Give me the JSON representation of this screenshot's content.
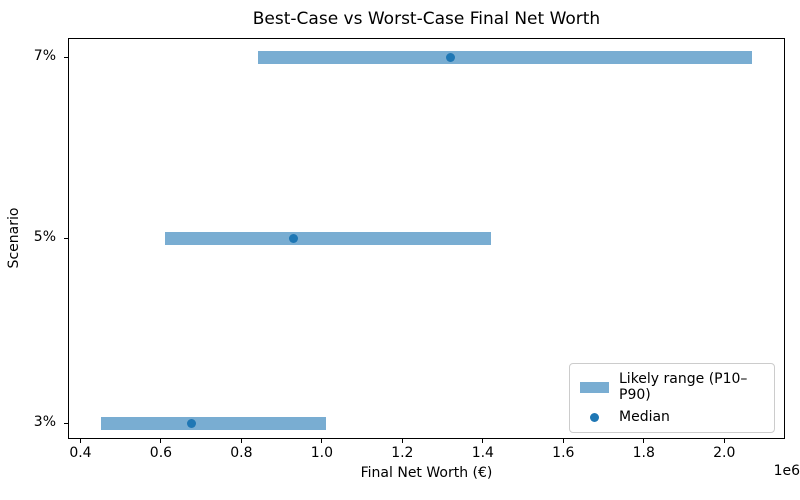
{
  "chart_data": {
    "type": "bar",
    "subtype": "horizontal-range-bar-with-median",
    "title": "Best-Case vs Worst-Case Final Net Worth",
    "xlabel": "Final Net Worth (€)",
    "ylabel": "Scenario",
    "x_offset_label": "1e6",
    "xlim": [
      369000,
      2151000
    ],
    "x_ticks": [
      400000,
      600000,
      800000,
      1000000,
      1200000,
      1400000,
      1600000,
      1800000,
      2000000
    ],
    "x_tick_labels": [
      "0.4",
      "0.6",
      "0.8",
      "1.0",
      "1.2",
      "1.4",
      "1.6",
      "1.8",
      "2.0"
    ],
    "grid": false,
    "categories_top_to_bottom": [
      "7%",
      "5%",
      "3%"
    ],
    "rows": [
      {
        "scenario": "7%",
        "p10": 840000,
        "median": 1320000,
        "p90": 2070000
      },
      {
        "scenario": "5%",
        "p10": 610000,
        "median": 930000,
        "p90": 1420000
      },
      {
        "scenario": "3%",
        "p10": 450000,
        "median": 675000,
        "p90": 1010000
      }
    ],
    "legend": {
      "position": "lower right",
      "entries": [
        {
          "label": "Likely range (P10–P90)",
          "type": "patch",
          "color": "#79add2"
        },
        {
          "label": "Median",
          "type": "dot",
          "color": "#1f77b4"
        }
      ]
    },
    "colors": {
      "range_bar": "#79add2",
      "median_dot": "#1f77b4",
      "axis": "#000000",
      "background": "#ffffff"
    }
  }
}
